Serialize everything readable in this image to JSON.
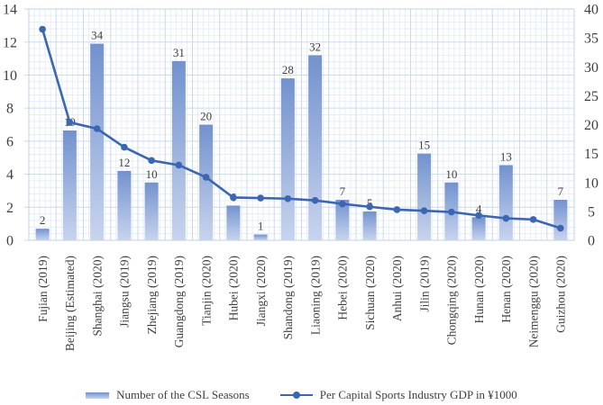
{
  "chart_data": {
    "type": "combo-bar-line",
    "title": "",
    "categories": [
      "Fujian (2019)",
      "Beijing (Estimated)",
      "Shanghai (2020)",
      "Jiangsu (2019)",
      "Zhejiang (2019)",
      "Guangdong (2019)",
      "Tianjin (2020)",
      "Hubei (2020)",
      "Jiangxi (2020)",
      "Shandong (2019)",
      "Liaoning (2019)",
      "Hebei (2020)",
      "Sichuan (2020)",
      "Anhui (2020)",
      "Jilin (2019)",
      "Chongqing (2020)",
      "Hunan (2020)",
      "Henan (2020)",
      "Neimenggu (2020)",
      "Guizhou (2020)"
    ],
    "series": [
      {
        "name": "Number of the CSL Seasons",
        "type": "bar",
        "axis": "right",
        "data_labels": true,
        "values": [
          2,
          19,
          34,
          12,
          10,
          31,
          20,
          6,
          1,
          28,
          32,
          7,
          5,
          null,
          15,
          10,
          4,
          13,
          null,
          7
        ]
      },
      {
        "name": "Per Capital Sports Industry GDP in ¥1000",
        "type": "line",
        "axis": "right",
        "data_labels": false,
        "values": [
          36.5,
          20.4,
          19.3,
          16.1,
          13.8,
          13.0,
          10.9,
          7.4,
          7.3,
          7.2,
          6.9,
          6.3,
          5.8,
          5.3,
          5.1,
          4.9,
          4.3,
          3.8,
          3.6,
          2.1
        ]
      }
    ],
    "left_axis": {
      "min": 0,
      "max": 14,
      "major_step": 2,
      "ticks": [
        "0",
        "2",
        "4",
        "6",
        "8",
        "10",
        "12",
        "14"
      ]
    },
    "right_axis": {
      "min": 0,
      "max": 40,
      "major_step": 5,
      "ticks": [
        "0",
        "5",
        "10",
        "15",
        "20",
        "25",
        "30",
        "35",
        "40"
      ]
    },
    "grid": {
      "major": true,
      "minor": true
    },
    "legend_position": "bottom",
    "colors": {
      "bar_top": "#7292CE",
      "bar_bottom": "#C8D4EE",
      "legend_bar": "#8FB0DC",
      "line": "#3D66B1",
      "grid_major": "#CBDAEE",
      "grid_minor": "#E7EEF8",
      "border": "#C0D0E6",
      "text": "#3F3F3F"
    }
  }
}
